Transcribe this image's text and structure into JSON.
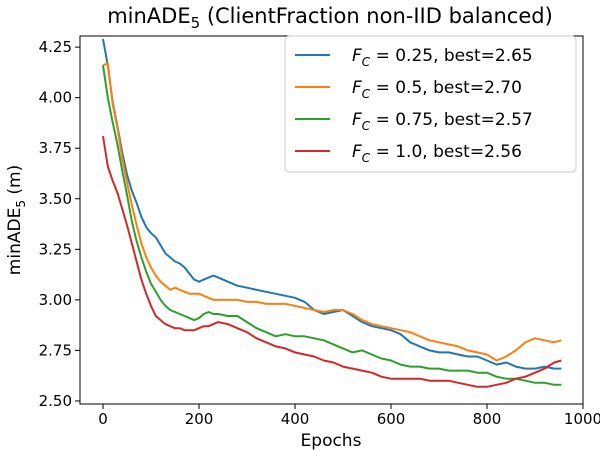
{
  "chart_data": {
    "type": "line",
    "title": {
      "main": "minADE",
      "sub": "5",
      "rest": " (ClientFraction non-IID balanced)"
    },
    "xlabel": "Epochs",
    "ylabel": {
      "main": "minADE",
      "sub": "5",
      "rest": " (m)"
    },
    "xlim": [
      -48,
      1000
    ],
    "ylim": [
      2.485,
      4.305
    ],
    "xticks": [
      0,
      200,
      400,
      600,
      800,
      1000
    ],
    "xtick_labels": [
      "0",
      "200",
      "400",
      "600",
      "800",
      "1000"
    ],
    "yticks": [
      2.5,
      2.75,
      3.0,
      3.25,
      3.5,
      3.75,
      4.0,
      4.25
    ],
    "ytick_labels": [
      "2.50",
      "2.75",
      "3.00",
      "3.25",
      "3.50",
      "3.75",
      "4.00",
      "4.25"
    ],
    "grid": false,
    "legend_position": "top-right",
    "series": [
      {
        "name": "F_C = 0.25, best=2.65",
        "legend": {
          "var": "F",
          "sub": "C",
          "text": " = 0.25, best=2.65"
        },
        "color": "#1f77b4",
        "points": [
          [
            0,
            4.29
          ],
          [
            10,
            4.16
          ],
          [
            20,
            3.98
          ],
          [
            30,
            3.86
          ],
          [
            40,
            3.73
          ],
          [
            50,
            3.62
          ],
          [
            60,
            3.54
          ],
          [
            70,
            3.48
          ],
          [
            80,
            3.41
          ],
          [
            90,
            3.36
          ],
          [
            100,
            3.33
          ],
          [
            110,
            3.31
          ],
          [
            120,
            3.27
          ],
          [
            130,
            3.23
          ],
          [
            140,
            3.21
          ],
          [
            150,
            3.19
          ],
          [
            160,
            3.18
          ],
          [
            170,
            3.16
          ],
          [
            180,
            3.13
          ],
          [
            190,
            3.1
          ],
          [
            200,
            3.09
          ],
          [
            210,
            3.1
          ],
          [
            220,
            3.11
          ],
          [
            230,
            3.12
          ],
          [
            240,
            3.11
          ],
          [
            250,
            3.1
          ],
          [
            260,
            3.09
          ],
          [
            280,
            3.07
          ],
          [
            300,
            3.06
          ],
          [
            320,
            3.05
          ],
          [
            340,
            3.04
          ],
          [
            360,
            3.03
          ],
          [
            380,
            3.02
          ],
          [
            400,
            3.01
          ],
          [
            420,
            2.99
          ],
          [
            440,
            2.95
          ],
          [
            460,
            2.93
          ],
          [
            480,
            2.94
          ],
          [
            500,
            2.95
          ],
          [
            520,
            2.92
          ],
          [
            540,
            2.89
          ],
          [
            560,
            2.87
          ],
          [
            580,
            2.86
          ],
          [
            600,
            2.85
          ],
          [
            620,
            2.83
          ],
          [
            640,
            2.79
          ],
          [
            660,
            2.77
          ],
          [
            680,
            2.75
          ],
          [
            700,
            2.74
          ],
          [
            720,
            2.74
          ],
          [
            740,
            2.73
          ],
          [
            760,
            2.72
          ],
          [
            780,
            2.72
          ],
          [
            800,
            2.7
          ],
          [
            820,
            2.68
          ],
          [
            840,
            2.69
          ],
          [
            860,
            2.67
          ],
          [
            880,
            2.66
          ],
          [
            900,
            2.66
          ],
          [
            920,
            2.67
          ],
          [
            940,
            2.66
          ],
          [
            955,
            2.66
          ]
        ]
      },
      {
        "name": "F_C = 0.5, best=2.70",
        "legend": {
          "var": "F",
          "sub": "C",
          "text": " = 0.5, best=2.70"
        },
        "color": "#ff7f0e",
        "points": [
          [
            0,
            4.16
          ],
          [
            10,
            4.17
          ],
          [
            20,
            3.97
          ],
          [
            30,
            3.85
          ],
          [
            40,
            3.7
          ],
          [
            50,
            3.58
          ],
          [
            60,
            3.47
          ],
          [
            70,
            3.37
          ],
          [
            80,
            3.28
          ],
          [
            90,
            3.21
          ],
          [
            100,
            3.16
          ],
          [
            110,
            3.12
          ],
          [
            120,
            3.09
          ],
          [
            130,
            3.07
          ],
          [
            140,
            3.05
          ],
          [
            150,
            3.06
          ],
          [
            160,
            3.05
          ],
          [
            170,
            3.04
          ],
          [
            180,
            3.03
          ],
          [
            190,
            3.03
          ],
          [
            200,
            3.03
          ],
          [
            210,
            3.02
          ],
          [
            220,
            3.01
          ],
          [
            230,
            3.0
          ],
          [
            240,
            3.0
          ],
          [
            260,
            3.0
          ],
          [
            280,
            3.0
          ],
          [
            300,
            2.99
          ],
          [
            320,
            2.99
          ],
          [
            340,
            2.98
          ],
          [
            360,
            2.98
          ],
          [
            380,
            2.98
          ],
          [
            400,
            2.97
          ],
          [
            420,
            2.96
          ],
          [
            440,
            2.95
          ],
          [
            460,
            2.94
          ],
          [
            480,
            2.95
          ],
          [
            500,
            2.95
          ],
          [
            520,
            2.93
          ],
          [
            540,
            2.9
          ],
          [
            560,
            2.88
          ],
          [
            580,
            2.87
          ],
          [
            600,
            2.86
          ],
          [
            620,
            2.85
          ],
          [
            640,
            2.84
          ],
          [
            660,
            2.82
          ],
          [
            680,
            2.8
          ],
          [
            700,
            2.79
          ],
          [
            720,
            2.78
          ],
          [
            740,
            2.77
          ],
          [
            760,
            2.75
          ],
          [
            780,
            2.74
          ],
          [
            800,
            2.73
          ],
          [
            820,
            2.7
          ],
          [
            840,
            2.72
          ],
          [
            860,
            2.75
          ],
          [
            880,
            2.79
          ],
          [
            900,
            2.81
          ],
          [
            920,
            2.8
          ],
          [
            940,
            2.79
          ],
          [
            955,
            2.8
          ]
        ]
      },
      {
        "name": "F_C = 0.75, best=2.57",
        "legend": {
          "var": "F",
          "sub": "C",
          "text": " = 0.75, best=2.57"
        },
        "color": "#2ca02c",
        "points": [
          [
            0,
            4.16
          ],
          [
            10,
            4.0
          ],
          [
            20,
            3.88
          ],
          [
            30,
            3.77
          ],
          [
            40,
            3.64
          ],
          [
            50,
            3.52
          ],
          [
            60,
            3.39
          ],
          [
            70,
            3.29
          ],
          [
            80,
            3.21
          ],
          [
            90,
            3.14
          ],
          [
            100,
            3.08
          ],
          [
            110,
            3.04
          ],
          [
            120,
            3.0
          ],
          [
            130,
            2.97
          ],
          [
            140,
            2.95
          ],
          [
            150,
            2.94
          ],
          [
            160,
            2.93
          ],
          [
            170,
            2.92
          ],
          [
            180,
            2.91
          ],
          [
            190,
            2.9
          ],
          [
            200,
            2.91
          ],
          [
            210,
            2.93
          ],
          [
            220,
            2.94
          ],
          [
            230,
            2.93
          ],
          [
            240,
            2.93
          ],
          [
            260,
            2.92
          ],
          [
            280,
            2.92
          ],
          [
            300,
            2.89
          ],
          [
            320,
            2.86
          ],
          [
            340,
            2.84
          ],
          [
            360,
            2.82
          ],
          [
            380,
            2.83
          ],
          [
            400,
            2.82
          ],
          [
            420,
            2.82
          ],
          [
            440,
            2.81
          ],
          [
            460,
            2.8
          ],
          [
            480,
            2.78
          ],
          [
            500,
            2.76
          ],
          [
            520,
            2.74
          ],
          [
            540,
            2.75
          ],
          [
            560,
            2.73
          ],
          [
            580,
            2.71
          ],
          [
            600,
            2.7
          ],
          [
            620,
            2.68
          ],
          [
            640,
            2.67
          ],
          [
            660,
            2.67
          ],
          [
            680,
            2.66
          ],
          [
            700,
            2.66
          ],
          [
            720,
            2.65
          ],
          [
            740,
            2.65
          ],
          [
            760,
            2.65
          ],
          [
            780,
            2.64
          ],
          [
            800,
            2.64
          ],
          [
            820,
            2.62
          ],
          [
            840,
            2.61
          ],
          [
            860,
            2.61
          ],
          [
            880,
            2.6
          ],
          [
            900,
            2.59
          ],
          [
            920,
            2.59
          ],
          [
            940,
            2.58
          ],
          [
            955,
            2.58
          ]
        ]
      },
      {
        "name": "F_C = 1.0, best=2.56",
        "legend": {
          "var": "F",
          "sub": "C",
          "text": " = 1.0, best=2.56"
        },
        "color": "#d62728",
        "points": [
          [
            0,
            3.81
          ],
          [
            10,
            3.66
          ],
          [
            20,
            3.59
          ],
          [
            30,
            3.53
          ],
          [
            40,
            3.45
          ],
          [
            50,
            3.37
          ],
          [
            60,
            3.28
          ],
          [
            70,
            3.19
          ],
          [
            80,
            3.1
          ],
          [
            90,
            3.03
          ],
          [
            100,
            2.97
          ],
          [
            110,
            2.92
          ],
          [
            120,
            2.9
          ],
          [
            130,
            2.88
          ],
          [
            140,
            2.87
          ],
          [
            150,
            2.86
          ],
          [
            160,
            2.86
          ],
          [
            170,
            2.85
          ],
          [
            180,
            2.85
          ],
          [
            190,
            2.85
          ],
          [
            200,
            2.86
          ],
          [
            210,
            2.87
          ],
          [
            220,
            2.87
          ],
          [
            230,
            2.88
          ],
          [
            240,
            2.89
          ],
          [
            260,
            2.88
          ],
          [
            280,
            2.86
          ],
          [
            300,
            2.84
          ],
          [
            320,
            2.81
          ],
          [
            340,
            2.79
          ],
          [
            360,
            2.77
          ],
          [
            380,
            2.76
          ],
          [
            400,
            2.74
          ],
          [
            420,
            2.73
          ],
          [
            440,
            2.72
          ],
          [
            460,
            2.7
          ],
          [
            480,
            2.69
          ],
          [
            500,
            2.67
          ],
          [
            520,
            2.66
          ],
          [
            540,
            2.65
          ],
          [
            560,
            2.64
          ],
          [
            580,
            2.62
          ],
          [
            600,
            2.61
          ],
          [
            620,
            2.61
          ],
          [
            640,
            2.61
          ],
          [
            660,
            2.61
          ],
          [
            680,
            2.6
          ],
          [
            700,
            2.6
          ],
          [
            720,
            2.6
          ],
          [
            740,
            2.59
          ],
          [
            760,
            2.58
          ],
          [
            780,
            2.57
          ],
          [
            800,
            2.57
          ],
          [
            820,
            2.58
          ],
          [
            840,
            2.59
          ],
          [
            860,
            2.61
          ],
          [
            880,
            2.62
          ],
          [
            900,
            2.64
          ],
          [
            920,
            2.66
          ],
          [
            940,
            2.69
          ],
          [
            955,
            2.7
          ]
        ]
      }
    ]
  }
}
